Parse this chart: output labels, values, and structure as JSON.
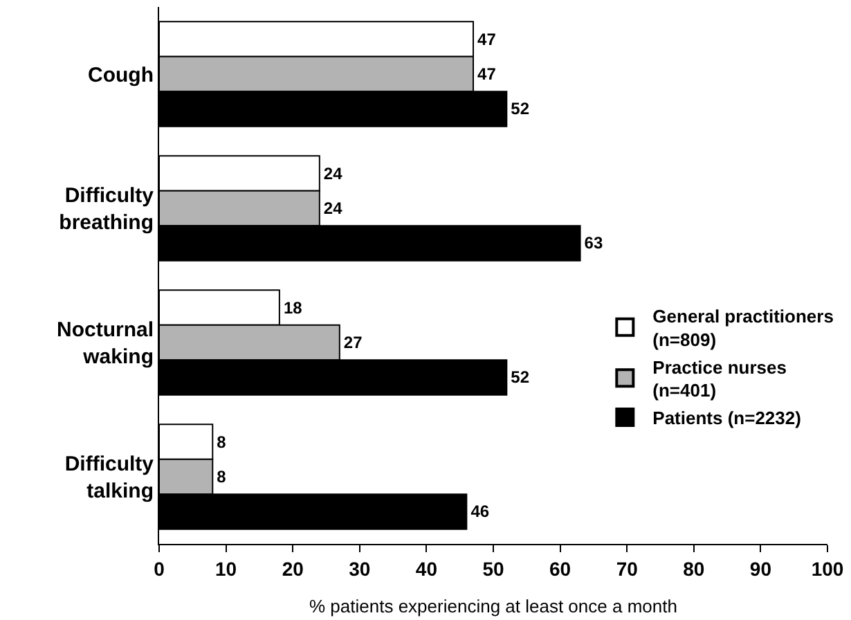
{
  "chart_data": {
    "type": "bar",
    "orientation": "horizontal",
    "xlabel": "% patients experiencing at least once a month",
    "categories": [
      "Cough",
      "Difficulty\nbreathing",
      "Nocturnal\nwaking",
      "Difficulty\ntalking"
    ],
    "series": [
      {
        "name": "General practitioners\n(n=809)",
        "color": "#ffffff",
        "values": [
          47,
          24,
          18,
          8
        ]
      },
      {
        "name": "Practice nurses\n(n=401)",
        "color": "#b3b3b3",
        "values": [
          47,
          24,
          27,
          8
        ]
      },
      {
        "name": "Patients (n=2232)",
        "color": "#000000",
        "values": [
          52,
          63,
          52,
          46
        ]
      }
    ],
    "xlim": [
      0,
      100
    ],
    "xticks": [
      0,
      10,
      20,
      30,
      40,
      50,
      60,
      70,
      80,
      90,
      100
    ],
    "data_labels": true,
    "legend": "right"
  }
}
